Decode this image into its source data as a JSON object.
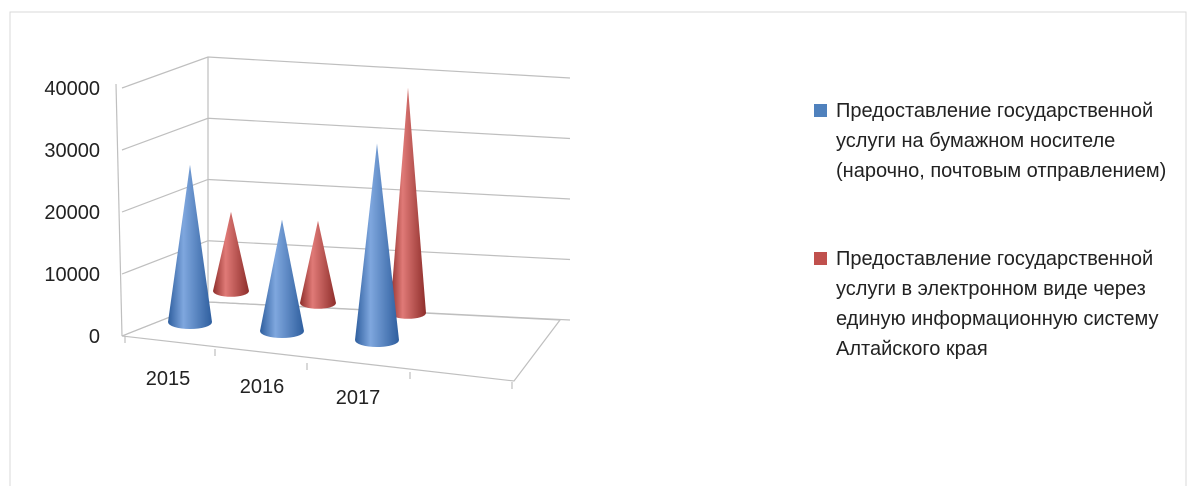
{
  "chart_data": {
    "type": "bar",
    "style": "3d-cone",
    "categories": [
      "2015",
      "2016",
      "2017"
    ],
    "series": [
      {
        "name": "Предоставление государственной услуги на бумажном носителе (нарочно, почтовым отправлением)",
        "color": "#4F81BD",
        "values": [
          24000,
          17000,
          30000
        ]
      },
      {
        "name": "Предоставление государственной услуги в электронном  виде через единую информационную систему Алтайского края",
        "color": "#C0504D",
        "values": [
          13000,
          13500,
          37000
        ]
      }
    ],
    "y_ticks": [
      "0",
      "10000",
      "20000",
      "30000",
      "40000"
    ],
    "ylim": [
      0,
      40000
    ],
    "grid": true,
    "legend": "right"
  }
}
